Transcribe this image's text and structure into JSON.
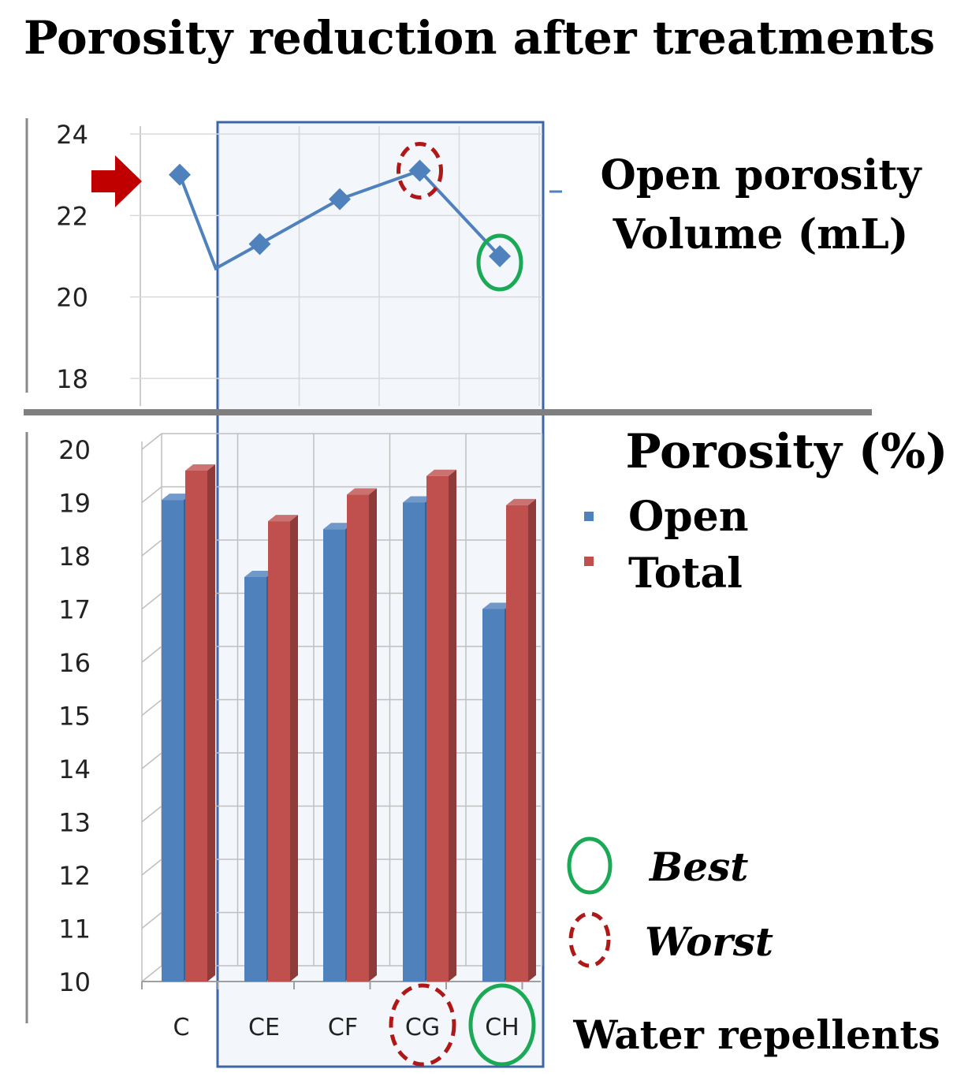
{
  "chart_data": {
    "title": "Porosity reduction after treatments",
    "categories": [
      "C",
      "CE",
      "CF",
      "CG",
      "CH"
    ],
    "xlabel": "Water repellents",
    "top": {
      "type": "line",
      "label_line1": "Open porosity",
      "label_line2": "Volume (mL)",
      "ylim": [
        18,
        24
      ],
      "yticks": [
        "24",
        "22",
        "20",
        "18"
      ],
      "values": [
        23.0,
        20.7,
        21.3,
        22.4,
        23.1,
        21.0
      ],
      "x_positions": [
        0,
        0.45,
        1,
        2,
        3,
        4
      ],
      "color": "#4f81bd",
      "reference_arrow": "red arrow at control value"
    },
    "bottom": {
      "type": "bar",
      "ylabel": "Porosity (%)",
      "ylim": [
        10,
        20
      ],
      "yticks": [
        "20",
        "19",
        "18",
        "17",
        "16",
        "15",
        "14",
        "13",
        "12",
        "11",
        "10"
      ],
      "grid": true,
      "series": [
        {
          "name": "Open",
          "values": [
            19.05,
            17.6,
            18.5,
            19.0,
            17.0
          ],
          "color": "#4f81bd"
        },
        {
          "name": "Total",
          "values": [
            19.6,
            18.65,
            19.15,
            19.5,
            18.95
          ],
          "color": "#c0504d"
        }
      ]
    },
    "annotations": {
      "best": {
        "label": "Best",
        "category": "CH",
        "color": "#1aaa55",
        "style": "solid ellipse"
      },
      "worst": {
        "label": "Worst",
        "category": "CG",
        "color": "#b01818",
        "style": "dashed ellipse"
      },
      "highlight_region": [
        "CE",
        "CF",
        "CG",
        "CH"
      ]
    }
  }
}
